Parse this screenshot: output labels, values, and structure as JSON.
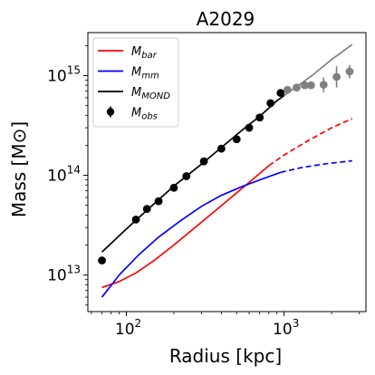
{
  "chart_data": {
    "type": "line",
    "title": "A2029",
    "xlabel": "Radius [kpc]",
    "ylabel": "Mass [M⊙]",
    "xscale": "log",
    "yscale": "log",
    "xlim": [
      57,
      3300
    ],
    "ylim": [
      4300000000000.0,
      2700000000000000.0
    ],
    "xticks": [
      {
        "value": 100,
        "base": "10",
        "exp": "2"
      },
      {
        "value": 1000,
        "base": "10",
        "exp": "3"
      }
    ],
    "yticks": [
      {
        "value": 10000000000000.0,
        "base": "10",
        "exp": "13"
      },
      {
        "value": 100000000000000.0,
        "base": "10",
        "exp": "14"
      },
      {
        "value": 1000000000000000.0,
        "base": "10",
        "exp": "15"
      }
    ],
    "grid": false,
    "legend_position": "upper-left",
    "legend": [
      {
        "key": "bar",
        "label": "M",
        "sub": "bar",
        "color": "#ff0000",
        "marker": "line"
      },
      {
        "key": "mm",
        "label": "M",
        "sub": "mm",
        "color": "#0000ff",
        "marker": "line"
      },
      {
        "key": "mond",
        "label": "M",
        "sub": "MOND",
        "color": "#000000",
        "marker": "line"
      },
      {
        "key": "obs",
        "label": "M",
        "sub": "obs",
        "color": "#000000",
        "marker": "errorbar"
      }
    ],
    "series": [
      {
        "key": "bar",
        "color": "#ff0000",
        "solid": [
          [
            70,
            7500000000000.0
          ],
          [
            90,
            8600000000000.0
          ],
          [
            115,
            10500000000000.0
          ],
          [
            150,
            14000000000000.0
          ],
          [
            200,
            20000000000000.0
          ],
          [
            300,
            34000000000000.0
          ],
          [
            450,
            58000000000000.0
          ],
          [
            600,
            85000000000000.0
          ],
          [
            800,
            125000000000000.0
          ]
        ],
        "dashed": [
          [
            800,
            125000000000000.0
          ],
          [
            1000,
            160000000000000.0
          ],
          [
            1400,
            220000000000000.0
          ],
          [
            2000,
            300000000000000.0
          ],
          [
            2700,
            370000000000000.0
          ]
        ]
      },
      {
        "key": "mm",
        "color": "#0000ff",
        "solid": [
          [
            70,
            6000000000000.0
          ],
          [
            90,
            10000000000000.0
          ],
          [
            120,
            16000000000000.0
          ],
          [
            160,
            24000000000000.0
          ],
          [
            220,
            35000000000000.0
          ],
          [
            300,
            49000000000000.0
          ],
          [
            400,
            63000000000000.0
          ],
          [
            550,
            78000000000000.0
          ],
          [
            700,
            90000000000000.0
          ],
          [
            950,
            107000000000000.0
          ]
        ],
        "dashed": [
          [
            950,
            107000000000000.0
          ],
          [
            1300,
            120000000000000.0
          ],
          [
            1800,
            130000000000000.0
          ],
          [
            2700,
            140000000000000.0
          ]
        ]
      },
      {
        "key": "mond",
        "color": "#000000",
        "solid": [
          [
            70,
            17000000000000.0
          ],
          [
            100,
            29000000000000.0
          ],
          [
            150,
            52000000000000.0
          ],
          [
            200,
            78000000000000.0
          ],
          [
            300,
            130000000000000.0
          ],
          [
            400,
            190000000000000.0
          ],
          [
            550,
            290000000000000.0
          ],
          [
            700,
            390000000000000.0
          ],
          [
            900,
            560000000000000.0
          ],
          [
            1000,
            630000000000000.0
          ]
        ],
        "gray": [
          [
            1000,
            630000000000000.0
          ],
          [
            1500,
            1000000000000000.0
          ],
          [
            2000,
            1450000000000000.0
          ],
          [
            2700,
            2050000000000000.0
          ]
        ]
      }
    ],
    "observations": {
      "black": [
        {
          "x": 70,
          "y": 14000000000000.0
        },
        {
          "x": 115,
          "y": 36000000000000.0
        },
        {
          "x": 135,
          "y": 46000000000000.0
        },
        {
          "x": 160,
          "y": 55000000000000.0
        },
        {
          "x": 200,
          "y": 75000000000000.0
        },
        {
          "x": 240,
          "y": 98000000000000.0
        },
        {
          "x": 310,
          "y": 138000000000000.0
        },
        {
          "x": 400,
          "y": 185000000000000.0
        },
        {
          "x": 500,
          "y": 230000000000000.0
        },
        {
          "x": 600,
          "y": 300000000000000.0
        },
        {
          "x": 700,
          "y": 380000000000000.0
        },
        {
          "x": 820,
          "y": 530000000000000.0
        },
        {
          "x": 950,
          "y": 670000000000000.0
        }
      ],
      "gray": [
        {
          "x": 1050,
          "y": 720000000000000.0,
          "ylo": 690000000000000.0,
          "yhi": 750000000000000.0
        },
        {
          "x": 1200,
          "y": 760000000000000.0,
          "ylo": 710000000000000.0,
          "yhi": 810000000000000.0
        },
        {
          "x": 1350,
          "y": 800000000000000.0,
          "ylo": 740000000000000.0,
          "yhi": 860000000000000.0
        },
        {
          "x": 1480,
          "y": 800000000000000.0,
          "ylo": 740000000000000.0,
          "yhi": 860000000000000.0
        },
        {
          "x": 1780,
          "y": 810000000000000.0,
          "ylo": 680000000000000.0,
          "yhi": 960000000000000.0
        },
        {
          "x": 2150,
          "y": 970000000000000.0,
          "ylo": 760000000000000.0,
          "yhi": 1240000000000000.0
        },
        {
          "x": 2600,
          "y": 1100000000000000.0,
          "ylo": 940000000000000.0,
          "yhi": 1280000000000000.0
        }
      ]
    }
  }
}
